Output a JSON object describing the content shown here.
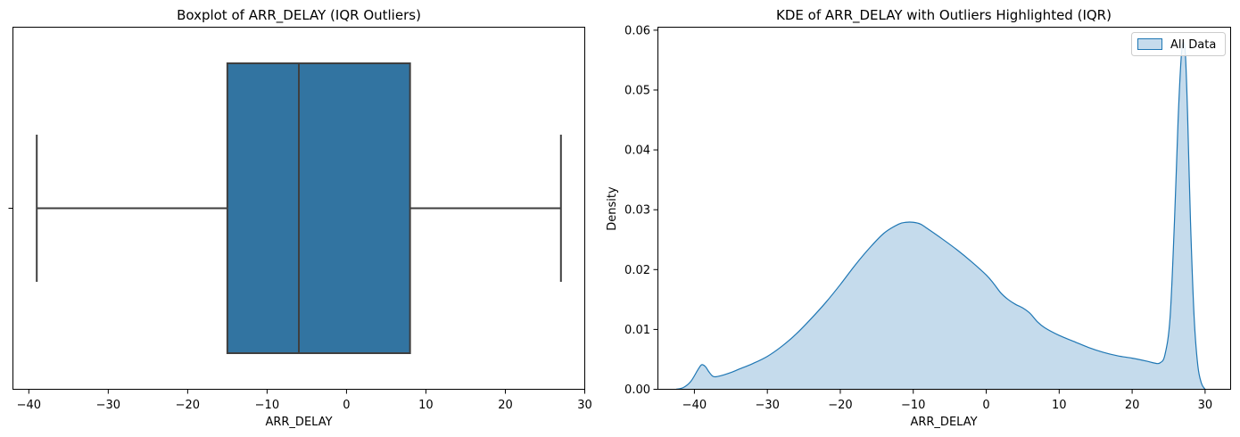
{
  "chart_data": [
    {
      "type": "box",
      "title": "Boxplot of ARR_DELAY (IQR Outliers)",
      "xlabel": "ARR_DELAY",
      "ylabel": "",
      "xlim": [
        -42,
        30
      ],
      "xticks": [
        -40,
        -30,
        -20,
        -10,
        0,
        10,
        20,
        30
      ],
      "xtick_labels": [
        "−40",
        "−30",
        "−20",
        "−10",
        "0",
        "10",
        "20",
        "30"
      ],
      "stats": {
        "whisker_low": -39,
        "q1": -15,
        "median": -6,
        "q3": 8,
        "whisker_high": 27
      },
      "box_color": "#3274a1",
      "line_color": "#3f3f3f"
    },
    {
      "type": "area",
      "title": "KDE of ARR_DELAY with Outliers Highlighted (IQR)",
      "xlabel": "ARR_DELAY",
      "ylabel": "Density",
      "xlim": [
        -45,
        33.5
      ],
      "ylim": [
        0,
        0.0605
      ],
      "xticks": [
        -40,
        -30,
        -20,
        -10,
        0,
        10,
        20,
        30
      ],
      "xtick_labels": [
        "−40",
        "−30",
        "−20",
        "−10",
        "0",
        "10",
        "20",
        "30"
      ],
      "yticks": [
        0,
        0.01,
        0.02,
        0.03,
        0.04,
        0.05,
        0.06
      ],
      "ytick_labels": [
        "0.00",
        "0.01",
        "0.02",
        "0.03",
        "0.04",
        "0.05",
        "0.06"
      ],
      "legend": {
        "position": "top-right",
        "entries": [
          "All Data"
        ]
      },
      "line_color": "#1f77b4",
      "fill_color": "#c5dbec",
      "series": [
        {
          "name": "All Data",
          "x": [
            -42.5,
            -41.5,
            -40.5,
            -39.5,
            -39,
            -38.5,
            -38,
            -37.5,
            -37,
            -36,
            -35,
            -34,
            -32,
            -30,
            -28,
            -26,
            -24,
            -22,
            -20,
            -18,
            -16,
            -14,
            -12,
            -11,
            -10,
            -9,
            -8,
            -6,
            -4,
            -2,
            0,
            1,
            2,
            3,
            4,
            5,
            6,
            7,
            8,
            10,
            12,
            14,
            16,
            18,
            20,
            22,
            23,
            23.8,
            24.5,
            25.2,
            25.8,
            26.3,
            26.7,
            27,
            27.3,
            27.6,
            28,
            28.5,
            29,
            29.5,
            30
          ],
          "y": [
            0.0,
            0.0003,
            0.0013,
            0.0033,
            0.0041,
            0.0038,
            0.0029,
            0.0022,
            0.0021,
            0.0024,
            0.0028,
            0.0033,
            0.0043,
            0.0055,
            0.0072,
            0.0093,
            0.0118,
            0.0145,
            0.0175,
            0.0207,
            0.0236,
            0.0261,
            0.0276,
            0.0279,
            0.0279,
            0.0276,
            0.0268,
            0.0251,
            0.0233,
            0.0213,
            0.0191,
            0.0177,
            0.0161,
            0.015,
            0.0142,
            0.0136,
            0.0127,
            0.0113,
            0.0103,
            0.009,
            0.008,
            0.007,
            0.0062,
            0.0056,
            0.0052,
            0.0047,
            0.0044,
            0.0044,
            0.0058,
            0.012,
            0.028,
            0.045,
            0.055,
            0.058,
            0.056,
            0.046,
            0.028,
            0.012,
            0.004,
            0.001,
            0.0
          ]
        }
      ]
    }
  ]
}
